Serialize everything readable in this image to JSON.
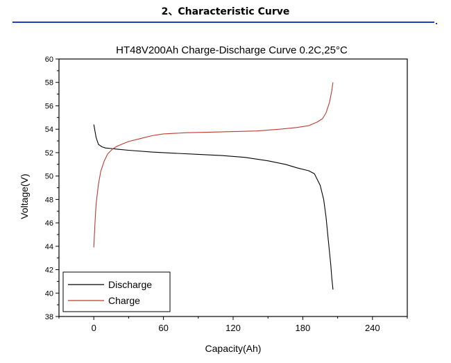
{
  "section_heading": "2、Characteristic Curve",
  "chart_data": {
    "type": "line",
    "title": "HT48V200Ah  Charge-Discharge Curve  0.2C,25°C",
    "xlabel": "Capacity(Ah)",
    "ylabel": "Voltage(V)",
    "xlim": [
      -30,
      270
    ],
    "ylim": [
      38,
      60
    ],
    "xticks": [
      "0",
      "60",
      "120",
      "180",
      "240"
    ],
    "yticks": [
      "38",
      "40",
      "42",
      "44",
      "46",
      "48",
      "50",
      "52",
      "54",
      "56",
      "58",
      "60"
    ],
    "grid": false,
    "legend": "bottom-left",
    "series": [
      {
        "name": "Discharge",
        "color": "#000000",
        "x": [
          0,
          2,
          4,
          7,
          10,
          15,
          20,
          30,
          50,
          70,
          90,
          110,
          130,
          150,
          165,
          175,
          185,
          190,
          195,
          198,
          200,
          202,
          204,
          205,
          206
        ],
        "y": [
          54.4,
          53.3,
          52.7,
          52.5,
          52.4,
          52.35,
          52.3,
          52.2,
          52.05,
          51.95,
          51.85,
          51.75,
          51.6,
          51.3,
          51.0,
          50.7,
          50.45,
          50.2,
          49.2,
          48.0,
          46.5,
          44.5,
          42.5,
          41.3,
          40.3
        ]
      },
      {
        "name": "Charge",
        "color": "#c0392b",
        "x": [
          0,
          1,
          2,
          4,
          6,
          9,
          12,
          16,
          20,
          25,
          30,
          40,
          50,
          60,
          70,
          80,
          100,
          120,
          140,
          160,
          175,
          185,
          192,
          197,
          200,
          203,
          205,
          206
        ],
        "y": [
          43.9,
          46.0,
          47.6,
          49.3,
          50.4,
          51.3,
          51.9,
          52.3,
          52.55,
          52.75,
          52.95,
          53.2,
          53.45,
          53.6,
          53.65,
          53.7,
          53.75,
          53.8,
          53.85,
          54.0,
          54.15,
          54.3,
          54.6,
          54.9,
          55.4,
          56.3,
          57.3,
          58.0
        ]
      }
    ]
  }
}
